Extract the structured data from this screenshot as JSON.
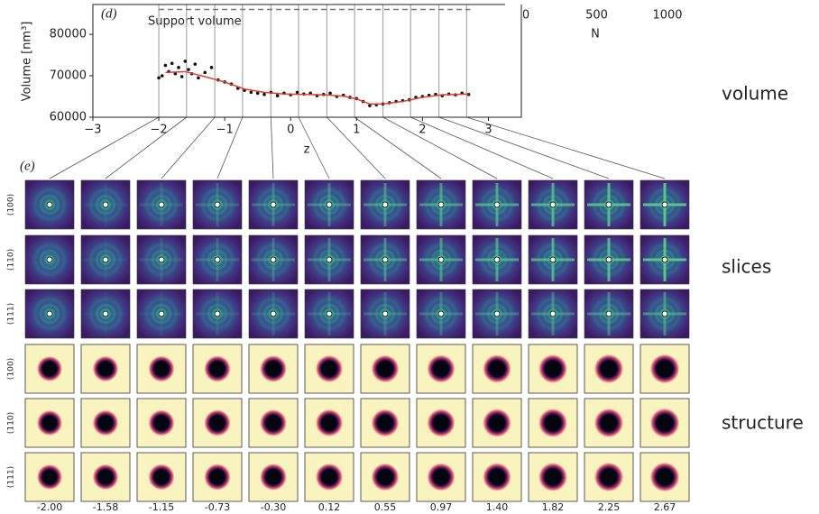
{
  "chart_data": {
    "type": "scatter",
    "panel_label": "(d)",
    "annotation": "Support volume",
    "support_volume": 86000,
    "xlabel": "z",
    "ylabel": "Volume [nm³]",
    "xlim": [
      -3,
      3.5
    ],
    "ylim": [
      60000,
      87200
    ],
    "xticks": [
      {
        "value": -3,
        "label": "−3"
      },
      {
        "value": -2,
        "label": "−2"
      },
      {
        "value": -1,
        "label": "−1"
      },
      0,
      1,
      2,
      3
    ],
    "yticks": [
      60000,
      70000,
      80000
    ],
    "series": [
      {
        "type": "scatter",
        "color": "#111111",
        "x": [
          -2.0,
          -1.95,
          -1.9,
          -1.85,
          -1.8,
          -1.75,
          -1.7,
          -1.65,
          -1.6,
          -1.55,
          -1.5,
          -1.45,
          -1.4,
          -1.3,
          -1.2,
          -1.1,
          -1.0,
          -0.9,
          -0.8,
          -0.7,
          -0.6,
          -0.5,
          -0.4,
          -0.3,
          -0.2,
          -0.1,
          0.0,
          0.1,
          0.2,
          0.3,
          0.4,
          0.5,
          0.6,
          0.7,
          0.8,
          0.9,
          1.0,
          1.1,
          1.2,
          1.3,
          1.4,
          1.5,
          1.6,
          1.7,
          1.8,
          1.9,
          2.0,
          2.1,
          2.2,
          2.3,
          2.4,
          2.5,
          2.6,
          2.7
        ],
        "values": [
          69500,
          70000,
          72500,
          71000,
          73000,
          70500,
          72000,
          69800,
          73500,
          71500,
          70500,
          72800,
          69500,
          70800,
          72000,
          69000,
          68500,
          68000,
          67000,
          66500,
          66000,
          65800,
          65500,
          66000,
          65200,
          65800,
          65400,
          66000,
          65600,
          65800,
          65200,
          65500,
          65800,
          65000,
          65300,
          64800,
          64500,
          63800,
          62800,
          63000,
          63200,
          63500,
          63800,
          64000,
          64200,
          64800,
          65000,
          65300,
          65500,
          65200,
          65600,
          65400,
          65800,
          65500
        ]
      },
      {
        "type": "line",
        "color": "#e0412f",
        "x": [
          -1.9,
          -1.6,
          -1.3,
          -1.0,
          -0.7,
          -0.4,
          -0.1,
          0.2,
          0.5,
          0.8,
          1.0,
          1.2,
          1.4,
          1.7,
          2.0,
          2.3,
          2.7
        ],
        "values": [
          70800,
          71000,
          69800,
          68500,
          66800,
          66000,
          65600,
          65500,
          65400,
          65100,
          64400,
          63200,
          63200,
          63800,
          64800,
          65400,
          65600
        ]
      }
    ],
    "slice_z": [
      {
        "value": -2.0,
        "label": "-2.00"
      },
      {
        "value": -1.58,
        "label": "-1.58"
      },
      {
        "value": -1.15,
        "label": "-1.15"
      },
      {
        "value": -0.73,
        "label": "-0.73"
      },
      {
        "value": -0.3,
        "label": "-0.30"
      },
      {
        "value": 0.12,
        "label": "0.12"
      },
      {
        "value": 0.55,
        "label": "0.55"
      },
      {
        "value": 0.97,
        "label": "0.97"
      },
      {
        "value": 1.4,
        "label": "1.40"
      },
      {
        "value": 1.82,
        "label": "1.82"
      },
      {
        "value": 2.25,
        "label": "2.25"
      },
      {
        "value": 2.67,
        "label": "2.67"
      }
    ],
    "inset": {
      "xticks": [
        0,
        500,
        1000
      ],
      "xlabel": "N"
    }
  },
  "panel_e": {
    "label": "(e)",
    "slice_rows": [
      "(100)",
      "(110)",
      "(111)"
    ],
    "structure_rows": [
      "(100)",
      "(110)",
      "(111)"
    ]
  },
  "side_labels": {
    "volume": "volume",
    "slices": "slices",
    "structure": "structure"
  }
}
